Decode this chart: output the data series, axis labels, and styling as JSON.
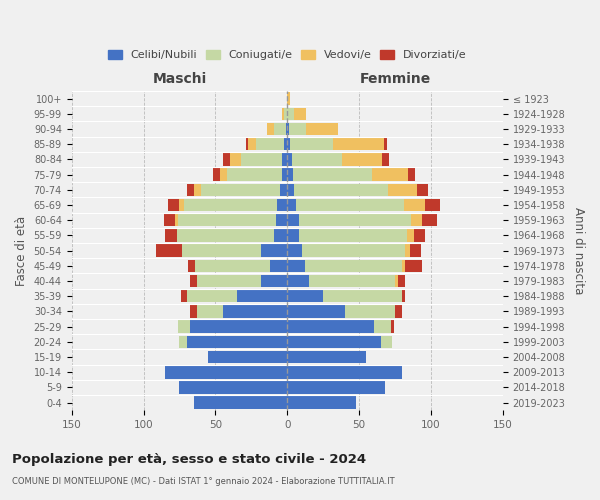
{
  "age_groups": [
    "0-4",
    "5-9",
    "10-14",
    "15-19",
    "20-24",
    "25-29",
    "30-34",
    "35-39",
    "40-44",
    "45-49",
    "50-54",
    "55-59",
    "60-64",
    "65-69",
    "70-74",
    "75-79",
    "80-84",
    "85-89",
    "90-94",
    "95-99",
    "100+"
  ],
  "birth_years": [
    "2019-2023",
    "2014-2018",
    "2009-2013",
    "2004-2008",
    "1999-2003",
    "1994-1998",
    "1989-1993",
    "1984-1988",
    "1979-1983",
    "1974-1978",
    "1969-1973",
    "1964-1968",
    "1959-1963",
    "1954-1958",
    "1949-1953",
    "1944-1948",
    "1939-1943",
    "1934-1938",
    "1929-1933",
    "1924-1928",
    "≤ 1923"
  ],
  "colors": {
    "celibe": "#4472c4",
    "coniugato": "#c5d8a4",
    "vedovo": "#f0c060",
    "divorziato": "#c0392b"
  },
  "males": {
    "celibe": [
      65,
      75,
      85,
      55,
      70,
      68,
      45,
      35,
      18,
      12,
      18,
      9,
      8,
      7,
      5,
      4,
      4,
      2,
      1,
      0,
      0
    ],
    "coniugato": [
      0,
      0,
      0,
      0,
      5,
      8,
      18,
      35,
      45,
      52,
      55,
      68,
      68,
      65,
      55,
      38,
      28,
      20,
      8,
      2,
      0
    ],
    "vedovo": [
      0,
      0,
      0,
      0,
      0,
      0,
      0,
      0,
      0,
      0,
      0,
      0,
      2,
      3,
      5,
      5,
      8,
      5,
      5,
      2,
      0
    ],
    "divorziato": [
      0,
      0,
      0,
      0,
      0,
      0,
      5,
      4,
      5,
      5,
      18,
      8,
      8,
      8,
      5,
      5,
      5,
      2,
      0,
      0,
      0
    ]
  },
  "females": {
    "nubile": [
      48,
      68,
      80,
      55,
      65,
      60,
      40,
      25,
      15,
      12,
      10,
      8,
      8,
      6,
      5,
      4,
      3,
      2,
      1,
      0,
      0
    ],
    "coniugata": [
      0,
      0,
      0,
      0,
      8,
      12,
      35,
      55,
      60,
      68,
      72,
      75,
      78,
      75,
      65,
      55,
      35,
      30,
      12,
      5,
      0
    ],
    "vedova": [
      0,
      0,
      0,
      0,
      0,
      0,
      0,
      0,
      2,
      2,
      3,
      5,
      8,
      15,
      20,
      25,
      28,
      35,
      22,
      8,
      2
    ],
    "divorziata": [
      0,
      0,
      0,
      0,
      0,
      2,
      5,
      2,
      5,
      12,
      8,
      8,
      10,
      10,
      8,
      5,
      5,
      2,
      0,
      0,
      0
    ]
  },
  "title": "Popolazione per età, sesso e stato civile - 2024",
  "subtitle": "COMUNE DI MONTELUPONE (MC) - Dati ISTAT 1° gennaio 2024 - Elaborazione TUTTITALIA.IT",
  "xlabel_left": "Maschi",
  "xlabel_right": "Femmine",
  "ylabel_left": "Fasce di età",
  "ylabel_right": "Anni di nascita",
  "xlim": 150,
  "legend_labels": [
    "Celibi/Nubili",
    "Coniugati/e",
    "Vedovi/e",
    "Divorziati/e"
  ],
  "bg_color": "#f0f0f0"
}
